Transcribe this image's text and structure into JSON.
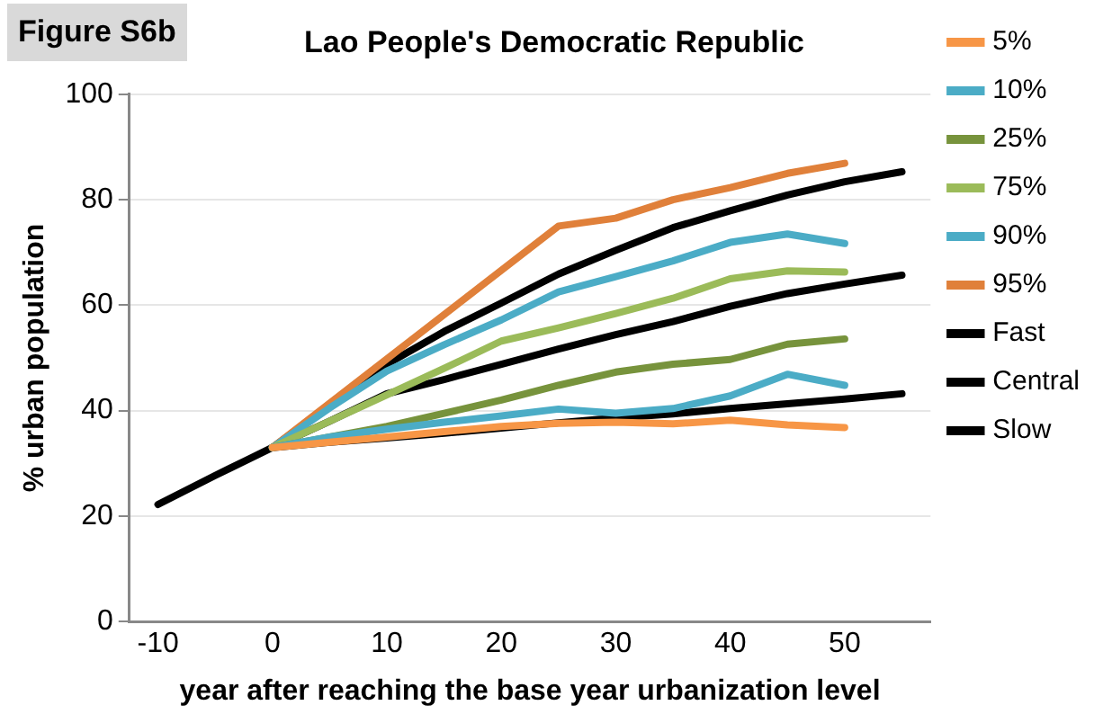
{
  "chart_data": {
    "type": "line",
    "title": "Lao People's Democratic Republic",
    "annotations": [
      "Figure S6b"
    ],
    "xlabel": "year after reaching the base year urbanization level",
    "ylabel": "% urban population",
    "xlim": [
      -12.5,
      57.5
    ],
    "xticks": [
      -10,
      0,
      10,
      20,
      30,
      40,
      50
    ],
    "ylim": [
      0,
      100
    ],
    "yticks": [
      0,
      20,
      40,
      60,
      80,
      100
    ],
    "grid": "y",
    "legend": "right",
    "marker": "none",
    "line_style": "solid",
    "series": [
      {
        "name": "5%",
        "color": "#f79646",
        "x": [
          0,
          5,
          10,
          15,
          20,
          25,
          30,
          35,
          40,
          45,
          50
        ],
        "values": [
          33,
          34,
          35,
          36,
          37,
          37.6,
          37.8,
          37.5,
          38.2,
          37.3,
          36.8
        ]
      },
      {
        "name": "10%",
        "color": "#4bacc6",
        "x": [
          0,
          5,
          10,
          15,
          20,
          25,
          30,
          35,
          40,
          45,
          50
        ],
        "values": [
          33,
          35,
          36.5,
          37.8,
          39,
          40.3,
          39.5,
          40.4,
          42.8,
          46.9,
          44.8
        ]
      },
      {
        "name": "25%",
        "color": "#77933c",
        "x": [
          0,
          5,
          10,
          15,
          20,
          25,
          30,
          35,
          40,
          45,
          50
        ],
        "values": [
          33,
          35,
          37,
          39.5,
          42,
          44.8,
          47.3,
          48.8,
          49.7,
          52.6,
          53.6
        ]
      },
      {
        "name": "75%",
        "color": "#9bbb59",
        "x": [
          0,
          5,
          10,
          15,
          20,
          25,
          30,
          35,
          40,
          45,
          50
        ],
        "values": [
          33,
          38,
          43,
          48,
          53.2,
          55.7,
          58.4,
          61.3,
          65,
          66.5,
          66.3
        ]
      },
      {
        "name": "90%",
        "color": "#4bacc6",
        "x": [
          0,
          5,
          10,
          15,
          20,
          25,
          30,
          35,
          40,
          45,
          50
        ],
        "values": [
          33,
          40.5,
          47.5,
          52.5,
          57.2,
          62.5,
          65.4,
          68.4,
          71.9,
          73.5,
          71.7
        ]
      },
      {
        "name": "95%",
        "color": "#e0803a",
        "x": [
          0,
          5,
          10,
          15,
          20,
          25,
          30,
          35,
          40,
          45,
          50
        ],
        "values": [
          33,
          41.4,
          49.8,
          58.2,
          66.6,
          75,
          76.5,
          80,
          82.3,
          85,
          86.9
        ]
      },
      {
        "name": "Fast",
        "color": "#000000",
        "x": [
          -10,
          -5,
          0,
          5,
          10,
          15,
          20,
          25,
          30,
          35,
          40,
          45,
          50,
          55
        ],
        "values": [
          22.2,
          27.7,
          33,
          41,
          48.8,
          55,
          60.4,
          65.9,
          70.4,
          74.7,
          77.9,
          80.9,
          83.4,
          85.3
        ]
      },
      {
        "name": "Central",
        "color": "#000000",
        "x": [
          0,
          5,
          10,
          15,
          20,
          25,
          30,
          35,
          40,
          45,
          50,
          55
        ],
        "values": [
          33,
          38,
          43.2,
          45.9,
          48.8,
          51.7,
          54.4,
          56.9,
          59.8,
          62.2,
          64,
          65.7
        ]
      },
      {
        "name": "Slow",
        "color": "#000000",
        "x": [
          0,
          5,
          10,
          15,
          20,
          25,
          30,
          35,
          40,
          45,
          50,
          55
        ],
        "values": [
          33,
          34,
          34.8,
          35.7,
          36.7,
          37.7,
          38.6,
          39.4,
          40.4,
          41.3,
          42.2,
          43.2
        ]
      }
    ]
  }
}
